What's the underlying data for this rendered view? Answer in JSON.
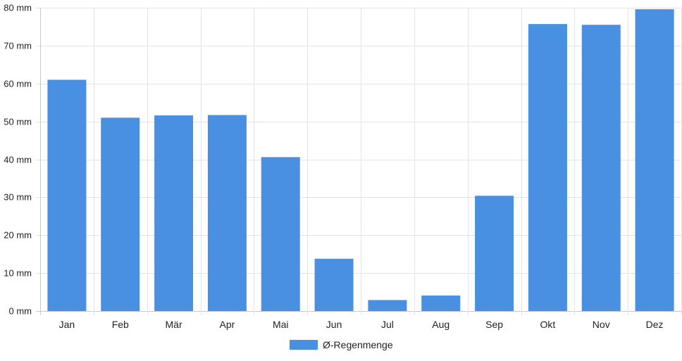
{
  "chart_data": {
    "type": "bar",
    "title": "",
    "xlabel": "",
    "ylabel": "",
    "unit": "mm",
    "ylim": [
      0,
      80
    ],
    "y_ticks": [
      0,
      10,
      20,
      30,
      40,
      50,
      60,
      70,
      80
    ],
    "y_tick_labels": [
      "0 mm",
      "10 mm",
      "20 mm",
      "30 mm",
      "40 mm",
      "50 mm",
      "60 mm",
      "70 mm",
      "80 mm"
    ],
    "grid": true,
    "legend_position": "bottom",
    "categories": [
      "Jan",
      "Feb",
      "Mär",
      "Apr",
      "Mai",
      "Jun",
      "Jul",
      "Aug",
      "Sep",
      "Okt",
      "Nov",
      "Dez"
    ],
    "series": [
      {
        "name": "Ø-Regenmenge",
        "color": "#4a90e2",
        "values": [
          61,
          51,
          51.6,
          51.7,
          40.6,
          13.8,
          2.9,
          4.1,
          30.4,
          75.7,
          75.5,
          79.6
        ]
      }
    ]
  }
}
